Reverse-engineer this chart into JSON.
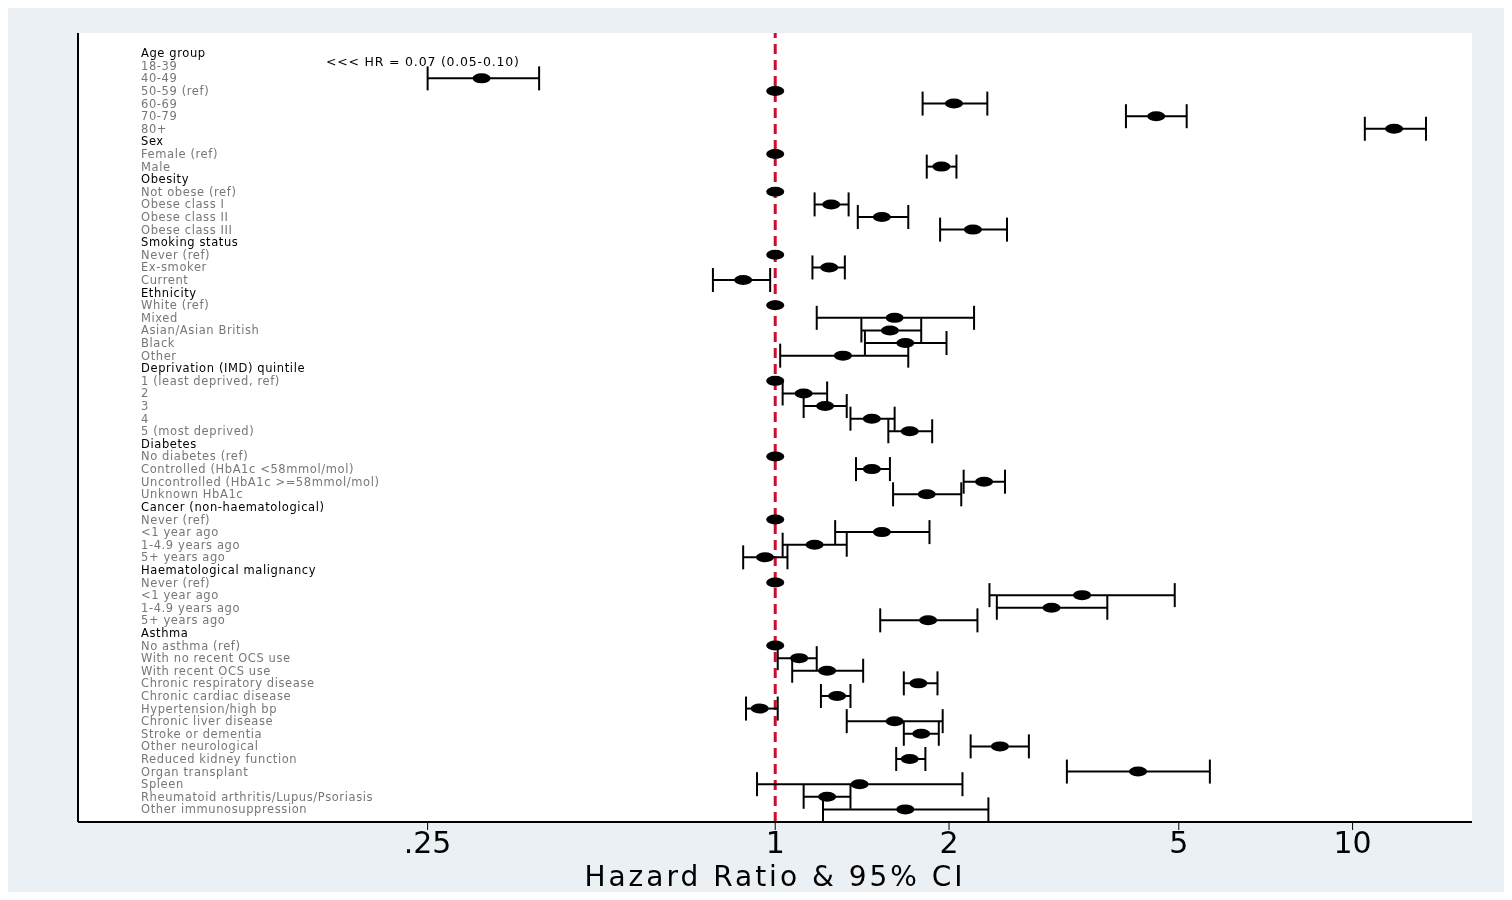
{
  "chart_data": {
    "type": "scatter",
    "orientation": "horizontal",
    "xlabel": "Hazard Ratio & 95% CI",
    "categories": [
      "Age group",
      "18-39",
      "40-49",
      "50-59 (ref)",
      "60-69",
      "70-79",
      "80+",
      "Sex",
      "Female (ref)",
      "Male",
      "Obesity",
      "Not obese (ref)",
      "Obese class I",
      "Obese class II",
      "Obese class III",
      "Smoking status",
      "Never (ref)",
      "Ex-smoker",
      "Current",
      "Ethnicity",
      "White (ref)",
      "Mixed",
      "Asian/Asian British",
      "Black",
      "Other",
      "Deprivation (IMD) quintile",
      "1 (least deprived, ref)",
      "2",
      "3",
      "4",
      "5 (most deprived)",
      "Diabetes",
      "No diabetes (ref)",
      "Controlled (HbA1c <58mmol/mol)",
      "Uncontrolled (HbA1c >=58mmol/mol)",
      "Unknown HbA1c",
      "Cancer (non-haematological)",
      "Never (ref)",
      "<1 year ago",
      "1-4.9 years ago",
      "5+ years ago",
      "Haematological malignancy",
      "Never (ref)",
      "<1 year ago",
      "1-4.9 years ago",
      "5+ years ago",
      "Asthma",
      "No asthma (ref)",
      "With no recent OCS use",
      "With recent OCS use",
      "Chronic respiratory disease",
      "Chronic cardiac disease",
      "Hypertension/high bp",
      "Chronic liver disease",
      "Stroke or dementia",
      "Other neurological",
      "Reduced kidney function",
      "Organ transplant",
      "Spleen",
      "Rheumatoid arthritis/Lupus/Psoriasis",
      "Other immunosuppression"
    ],
    "values": [
      null,
      null,
      0.31,
      1,
      2.04,
      4.57,
      11.8,
      null,
      1,
      1.94,
      null,
      1,
      1.25,
      1.53,
      2.2,
      null,
      1,
      1.24,
      0.88,
      null,
      1,
      1.61,
      1.58,
      1.68,
      1.31,
      null,
      1,
      1.12,
      1.22,
      1.47,
      1.71,
      null,
      1,
      1.47,
      2.3,
      1.83,
      null,
      1,
      1.53,
      1.17,
      0.96,
      null,
      1,
      3.4,
      3.01,
      1.84,
      null,
      1,
      1.1,
      1.23,
      1.77,
      1.28,
      0.94,
      1.61,
      1.79,
      2.45,
      1.71,
      4.25,
      1.4,
      1.23,
      1.68
    ],
    "errors": [
      null,
      null,
      [
        0.25,
        0.39
      ],
      null,
      [
        1.8,
        2.33
      ],
      [
        4.05,
        5.16
      ],
      [
        10.5,
        13.4
      ],
      null,
      null,
      [
        1.83,
        2.06
      ],
      null,
      null,
      [
        1.17,
        1.34
      ],
      [
        1.39,
        1.7
      ],
      [
        1.93,
        2.52
      ],
      null,
      null,
      [
        1.16,
        1.32
      ],
      [
        0.78,
        0.98
      ],
      null,
      null,
      [
        1.18,
        2.21
      ],
      [
        1.41,
        1.79
      ],
      [
        1.43,
        1.98
      ],
      [
        1.02,
        1.7
      ],
      null,
      null,
      [
        1.03,
        1.23
      ],
      [
        1.12,
        1.33
      ],
      [
        1.35,
        1.61
      ],
      [
        1.57,
        1.87
      ],
      null,
      null,
      [
        1.38,
        1.58
      ],
      [
        2.12,
        2.5
      ],
      [
        1.6,
        2.1
      ],
      null,
      null,
      [
        1.27,
        1.85
      ],
      [
        1.03,
        1.33
      ],
      [
        0.88,
        1.05
      ],
      null,
      null,
      [
        2.35,
        4.92
      ],
      [
        2.42,
        3.76
      ],
      [
        1.52,
        2.24
      ],
      null,
      null,
      [
        1.01,
        1.18
      ],
      [
        1.07,
        1.42
      ],
      [
        1.67,
        1.91
      ],
      [
        1.2,
        1.35
      ],
      [
        0.89,
        1.01
      ],
      [
        1.33,
        1.95
      ],
      [
        1.67,
        1.92
      ],
      [
        2.18,
        2.75
      ],
      [
        1.62,
        1.82
      ],
      [
        3.2,
        5.66
      ],
      [
        0.93,
        2.11
      ],
      [
        1.12,
        1.35
      ],
      [
        1.21,
        2.34
      ]
    ],
    "color": "#000000",
    "marker": "circle",
    "log": "x",
    "xlim": [
      0.062,
      16.1
    ],
    "xticks": [
      {
        "value": 0.25,
        "label": ".25"
      },
      1,
      2,
      5,
      10
    ],
    "ref_lines": [
      {
        "axis": "x",
        "value": 1,
        "color": "#c8102e",
        "line_style": "dashed"
      }
    ],
    "annotations": [
      "<<< HR = 0.07 (0.05-0.10)"
    ]
  }
}
